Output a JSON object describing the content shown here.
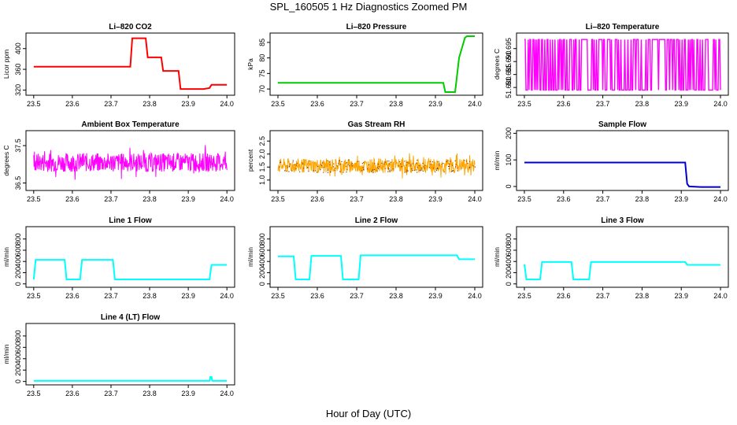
{
  "figure": {
    "title": "SPL_160505  1 Hz Diagnostics Zoomed PM",
    "xlabel": "Hour of Day (UTC)"
  },
  "chart_data": [
    {
      "type": "line",
      "title": "Li–820 CO2",
      "ylabel": "Licor ppm",
      "color": "#ff0000",
      "xlim": [
        23.5,
        24.0
      ],
      "ylim": [
        310,
        430
      ],
      "yticks": [
        "320",
        "360",
        "400"
      ],
      "xticks": [
        "23.5",
        "23.6",
        "23.7",
        "23.8",
        "23.9",
        "24.0"
      ],
      "x": [
        23.5,
        23.75,
        23.755,
        23.79,
        23.795,
        23.83,
        23.835,
        23.875,
        23.88,
        23.94,
        23.955,
        23.96,
        23.97,
        24.0
      ],
      "y": [
        365,
        365,
        420,
        420,
        383,
        383,
        357,
        357,
        322,
        322,
        324,
        330,
        330,
        330
      ]
    },
    {
      "type": "line",
      "title": "Li–820 Pressure",
      "ylabel": "kPa",
      "color": "#00cc00",
      "xlim": [
        23.5,
        24.0
      ],
      "ylim": [
        68,
        88
      ],
      "yticks": [
        "70",
        "75",
        "80",
        "85"
      ],
      "xticks": [
        "23.5",
        "23.6",
        "23.7",
        "23.8",
        "23.9",
        "24.0"
      ],
      "x": [
        23.5,
        23.92,
        23.925,
        23.95,
        23.96,
        23.975,
        23.98,
        24.0
      ],
      "y": [
        72,
        72,
        69,
        69,
        80,
        86.5,
        87,
        87
      ]
    },
    {
      "type": "line",
      "title": "Li–820 Temperature",
      "ylabel": "degrees C",
      "color": "#ff00ff",
      "xlim": [
        23.5,
        24.0
      ],
      "ylim": [
        51.677,
        51.701
      ],
      "yticks": [
        "51.680",
        "51.685",
        "51.690",
        "51.695"
      ],
      "xticks": [
        "23.5",
        "23.6",
        "23.7",
        "23.8",
        "23.9",
        "24.0"
      ],
      "levels": [
        51.679,
        51.6985
      ],
      "points": 250
    },
    {
      "type": "line",
      "title": "Ambient Box Temperature",
      "ylabel": "degrees C",
      "color": "#ff00ff",
      "xlim": [
        23.5,
        24.0
      ],
      "ylim": [
        36.3,
        37.9
      ],
      "yticks": [
        "36.5",
        "37.5"
      ],
      "xticks": [
        "23.5",
        "23.6",
        "23.7",
        "23.8",
        "23.9",
        "24.0"
      ],
      "mean": 37.05,
      "spread": 0.5,
      "points": 500
    },
    {
      "type": "line",
      "title": "Gas Stream RH",
      "ylabel": "percent",
      "color": "#ffa500",
      "mark_color": "#8b4500",
      "xlim": [
        23.5,
        24.0
      ],
      "ylim": [
        0.6,
        2.9
      ],
      "yticks": [
        "1.0",
        "1.5",
        "2.0",
        "2.5"
      ],
      "xticks": [
        "23.5",
        "23.6",
        "23.7",
        "23.8",
        "23.9",
        "24.0"
      ],
      "mean": 1.55,
      "spread": 0.55,
      "points": 500
    },
    {
      "type": "line",
      "title": "Sample Flow",
      "ylabel": "ml/min",
      "color": "#0000cc",
      "xlim": [
        23.5,
        24.0
      ],
      "ylim": [
        -15,
        210
      ],
      "yticks": [
        "0",
        "100",
        "200"
      ],
      "xticks": [
        "23.5",
        "23.6",
        "23.7",
        "23.8",
        "23.9",
        "24.0"
      ],
      "x": [
        23.5,
        23.91,
        23.915,
        23.92,
        23.95,
        24.0
      ],
      "y": [
        90,
        90,
        10,
        0,
        -2,
        -2
      ]
    },
    {
      "type": "line",
      "title": "Line 1 Flow",
      "ylabel": "ml/min",
      "color": "#00ffff",
      "xlim": [
        23.5,
        24.0
      ],
      "ylim": [
        -60,
        1020
      ],
      "yticks": [
        "0",
        "200",
        "400",
        "600",
        "800"
      ],
      "xticks": [
        "23.5",
        "23.6",
        "23.7",
        "23.8",
        "23.9",
        "24.0"
      ],
      "x": [
        23.5,
        23.505,
        23.58,
        23.585,
        23.62,
        23.625,
        23.705,
        23.71,
        23.955,
        23.96,
        24.0
      ],
      "y": [
        80,
        430,
        430,
        80,
        80,
        430,
        430,
        80,
        80,
        340,
        340
      ]
    },
    {
      "type": "line",
      "title": "Line 2 Flow",
      "ylabel": "ml/min",
      "color": "#00ffff",
      "xlim": [
        23.5,
        24.0
      ],
      "ylim": [
        -60,
        1020
      ],
      "yticks": [
        "0",
        "200",
        "400",
        "600",
        "800"
      ],
      "xticks": [
        "23.5",
        "23.6",
        "23.7",
        "23.8",
        "23.9",
        "24.0"
      ],
      "x": [
        23.5,
        23.54,
        23.545,
        23.58,
        23.585,
        23.66,
        23.665,
        23.705,
        23.71,
        23.955,
        23.96,
        24.0
      ],
      "y": [
        490,
        490,
        80,
        80,
        500,
        500,
        80,
        80,
        510,
        510,
        440,
        440
      ]
    },
    {
      "type": "line",
      "title": "Line 3 Flow",
      "ylabel": "ml/min",
      "color": "#00ffff",
      "xlim": [
        23.5,
        24.0
      ],
      "ylim": [
        -60,
        1020
      ],
      "yticks": [
        "0",
        "200",
        "400",
        "600",
        "800"
      ],
      "xticks": [
        "23.5",
        "23.6",
        "23.7",
        "23.8",
        "23.9",
        "24.0"
      ],
      "x": [
        23.5,
        23.505,
        23.54,
        23.545,
        23.62,
        23.625,
        23.665,
        23.67,
        23.91,
        23.915,
        24.0
      ],
      "y": [
        350,
        80,
        80,
        390,
        390,
        80,
        80,
        390,
        390,
        340,
        340
      ]
    },
    {
      "type": "line",
      "title": "Line 4 (LT) Flow",
      "ylabel": "ml/min",
      "color": "#00ffff",
      "xlim": [
        23.5,
        24.0
      ],
      "ylim": [
        -60,
        1020
      ],
      "yticks": [
        "0",
        "200",
        "400",
        "600",
        "800"
      ],
      "xticks": [
        "23.5",
        "23.6",
        "23.7",
        "23.8",
        "23.9",
        "24.0"
      ],
      "x": [
        23.5,
        23.955,
        23.957,
        23.96,
        23.962,
        24.0
      ],
      "y": [
        10,
        10,
        80,
        80,
        10,
        10
      ]
    }
  ]
}
